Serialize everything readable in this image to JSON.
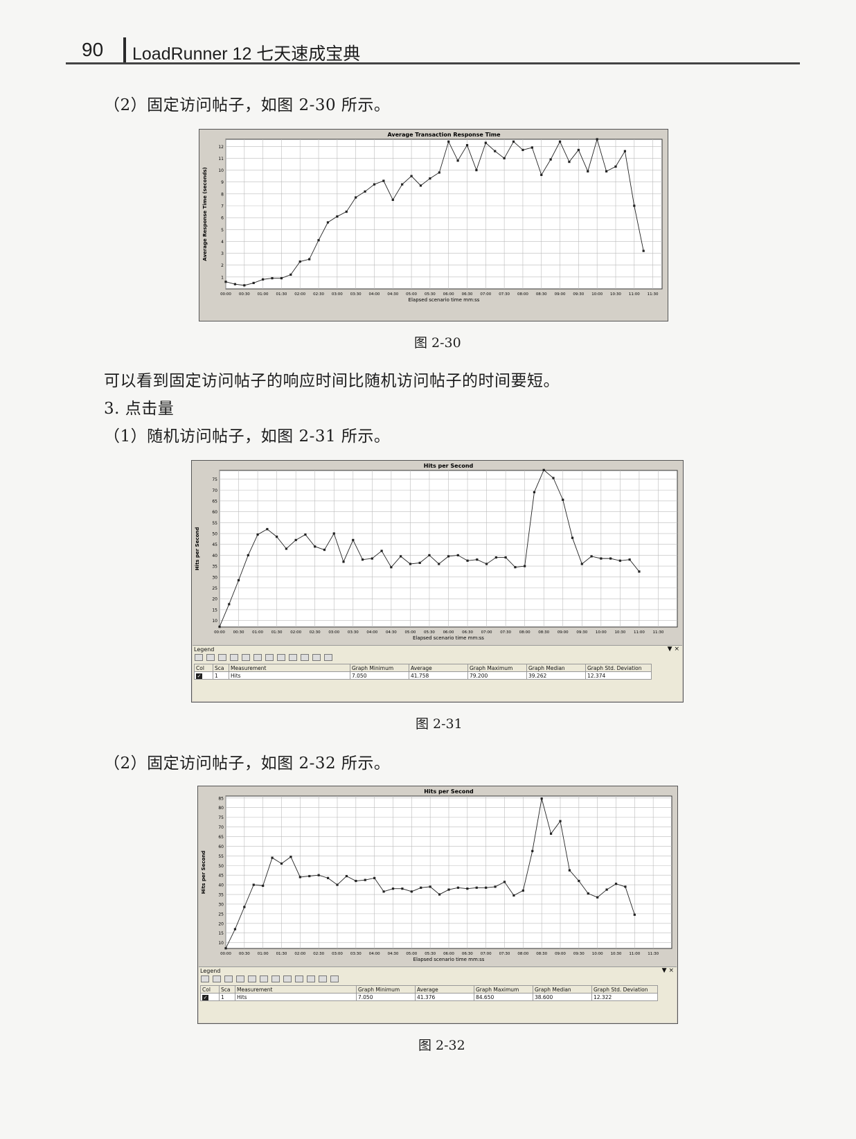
{
  "header": {
    "page_number": "90",
    "book_title": "LoadRunner 12 七天速成宝典"
  },
  "paragraphs": {
    "p1": "（2）固定访问帖子，如图 2-30 所示。",
    "p2": "可以看到固定访问帖子的响应时间比随机访问帖子的时间要短。",
    "p3": "3.  点击量",
    "p4": "（1）随机访问帖子，如图 2-31 所示。",
    "p5": "（2）固定访问帖子，如图 2-32 所示。"
  },
  "captions": {
    "fig30": "图 2-30",
    "fig31": "图 2-31",
    "fig32": "图 2-32"
  },
  "colors": {
    "plot_bg": "#ffffff",
    "frame_bg": "#d4d0c8",
    "line": "#222222",
    "grid": "#bbbbbb"
  },
  "legend_ui": {
    "title": "Legend",
    "controls": "▼ ×",
    "columns": [
      "Col",
      "Sca",
      "Measurement",
      "Graph Minimum",
      "Average",
      "Graph Maximum",
      "Graph Median",
      "Graph Std. Deviation"
    ]
  },
  "chart_data": [
    {
      "type": "line",
      "title": "Average Transaction Response Time",
      "xlabel": "Elapsed scenario time mm:ss",
      "ylabel": "Average Response Time (seconds)",
      "x_ticks": [
        "00:00",
        "00:30",
        "01:00",
        "01:30",
        "02:00",
        "02:30",
        "03:00",
        "03:30",
        "04:00",
        "04:30",
        "05:00",
        "05:30",
        "06:00",
        "06:30",
        "07:00",
        "07:30",
        "08:00",
        "08:30",
        "09:00",
        "09:30",
        "10:00",
        "10:30",
        "11:00",
        "11:30"
      ],
      "y_ticks": [
        1,
        2,
        3,
        4,
        5,
        6,
        7,
        8,
        9,
        10,
        11,
        12
      ],
      "xlim": [
        0,
        705
      ],
      "ylim": [
        0,
        12.6
      ],
      "grid": true,
      "x": [
        0,
        15,
        30,
        45,
        60,
        75,
        90,
        105,
        120,
        135,
        150,
        165,
        180,
        195,
        210,
        225,
        240,
        255,
        270,
        285,
        300,
        315,
        330,
        345,
        360,
        375,
        390,
        405,
        420,
        435,
        450,
        465,
        480,
        495,
        510,
        525,
        540,
        555,
        570,
        585,
        600,
        615,
        630,
        645,
        660,
        675,
        690,
        705
      ],
      "y": [
        0.6,
        0.4,
        0.3,
        0.5,
        0.8,
        0.9,
        0.9,
        1.2,
        2.3,
        2.5,
        4.1,
        5.6,
        6.1,
        6.5,
        7.7,
        8.2,
        8.8,
        9.1,
        7.5,
        8.8,
        9.5,
        8.7,
        9.3,
        9.8,
        12.4,
        10.8,
        12.1,
        10.0,
        12.3,
        11.6,
        11.0,
        12.4,
        11.7,
        11.9,
        9.6,
        10.9,
        12.4,
        10.7,
        11.7,
        9.9,
        12.6,
        9.9,
        10.3,
        11.6,
        7.0,
        3.2,
        null,
        null
      ]
    },
    {
      "type": "line",
      "title": "Hits per Second",
      "xlabel": "Elapsed scenario time mm:ss",
      "ylabel": "Hits per Second",
      "x_ticks": [
        "00:00",
        "00:30",
        "01:00",
        "01:30",
        "02:00",
        "02:30",
        "03:00",
        "03:30",
        "04:00",
        "04:30",
        "05:00",
        "05:30",
        "06:00",
        "06:30",
        "07:00",
        "07:30",
        "08:00",
        "08:30",
        "09:00",
        "09:30",
        "10:00",
        "10:30",
        "11:00",
        "11:30"
      ],
      "y_ticks": [
        10,
        15,
        20,
        25,
        30,
        35,
        40,
        45,
        50,
        55,
        60,
        65,
        70,
        75
      ],
      "xlim": [
        0,
        720
      ],
      "ylim": [
        7,
        79
      ],
      "grid": true,
      "x": [
        0,
        15,
        30,
        45,
        60,
        75,
        90,
        105,
        120,
        135,
        150,
        165,
        180,
        195,
        210,
        225,
        240,
        255,
        270,
        285,
        300,
        315,
        330,
        345,
        360,
        375,
        390,
        405,
        420,
        435,
        450,
        465,
        480,
        495,
        510,
        525,
        540,
        555,
        570,
        585,
        600,
        615,
        630,
        645,
        660,
        675,
        690,
        705,
        720
      ],
      "y": [
        7.1,
        17.5,
        28.5,
        40.0,
        49.5,
        52.0,
        48.5,
        43.0,
        47.0,
        49.5,
        44.0,
        42.5,
        50.0,
        37.0,
        47.0,
        38.0,
        38.5,
        42.0,
        34.5,
        39.5,
        36.0,
        36.5,
        40.0,
        36.0,
        39.5,
        40.0,
        37.5,
        38.0,
        36.0,
        39.0,
        39.0,
        34.5,
        35.0,
        69.0,
        79.2,
        75.5,
        65.5,
        48.0,
        36.0,
        39.5,
        38.5,
        38.5,
        37.5,
        38.0,
        32.5,
        null,
        null,
        null,
        null
      ],
      "legend": {
        "col": "",
        "scale": "1",
        "measurement": "Hits",
        "graph_minimum": "7.050",
        "average": "41.758",
        "graph_maximum": "79.200",
        "graph_median": "39.262",
        "graph_std_deviation": "12.374"
      }
    },
    {
      "type": "line",
      "title": "Hits per Second",
      "xlabel": "Elapsed scenario time mm:ss",
      "ylabel": "Hits per Second",
      "x_ticks": [
        "00:00",
        "00:30",
        "01:00",
        "01:30",
        "02:00",
        "02:30",
        "03:00",
        "03:30",
        "04:00",
        "04:30",
        "05:00",
        "05:30",
        "06:00",
        "06:30",
        "07:00",
        "07:30",
        "08:00",
        "08:30",
        "09:00",
        "09:30",
        "10:00",
        "10:30",
        "11:00",
        "11:30"
      ],
      "y_ticks": [
        10,
        15,
        20,
        25,
        30,
        35,
        40,
        45,
        50,
        55,
        60,
        65,
        70,
        75,
        80,
        85
      ],
      "xlim": [
        0,
        720
      ],
      "ylim": [
        7,
        86
      ],
      "grid": true,
      "x": [
        0,
        15,
        30,
        45,
        60,
        75,
        90,
        105,
        120,
        135,
        150,
        165,
        180,
        195,
        210,
        225,
        240,
        255,
        270,
        285,
        300,
        315,
        330,
        345,
        360,
        375,
        390,
        405,
        420,
        435,
        450,
        465,
        480,
        495,
        510,
        525,
        540,
        555,
        570,
        585,
        600,
        615,
        630,
        645,
        660,
        675,
        690,
        705,
        720
      ],
      "y": [
        7.1,
        17.0,
        28.5,
        40.0,
        39.5,
        54.0,
        51.0,
        54.5,
        44.0,
        44.5,
        45.0,
        43.5,
        40.0,
        44.5,
        42.0,
        42.5,
        43.5,
        36.5,
        38.0,
        38.0,
        36.5,
        38.5,
        39.0,
        35.0,
        37.5,
        38.5,
        38.0,
        38.5,
        38.5,
        39.0,
        41.5,
        34.5,
        37.0,
        57.5,
        84.7,
        66.5,
        73.0,
        47.5,
        42.0,
        35.5,
        33.5,
        37.5,
        40.5,
        39.0,
        24.5,
        null,
        null,
        null,
        null
      ],
      "legend": {
        "col": "",
        "scale": "1",
        "measurement": "Hits",
        "graph_minimum": "7.050",
        "average": "41.376",
        "graph_maximum": "84.650",
        "graph_median": "38.600",
        "graph_std_deviation": "12.322"
      }
    }
  ]
}
